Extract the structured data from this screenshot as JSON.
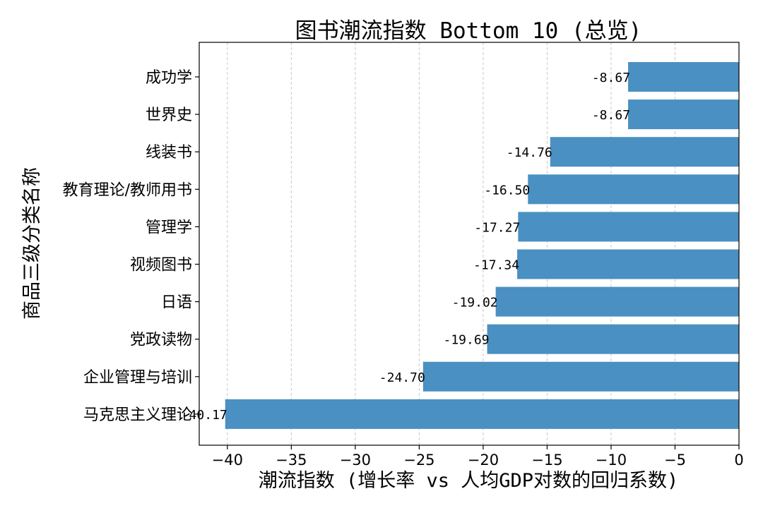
{
  "chart_data": {
    "type": "bar",
    "orientation": "horizontal",
    "title": "图书潮流指数 Bottom 10 (总览)",
    "xlabel": "潮流指数 (增长率 vs 人均GDP对数的回归系数)",
    "ylabel": "商品三级分类名称",
    "categories": [
      "成功学",
      "世界史",
      "线装书",
      "教育理论/教师用书",
      "管理学",
      "视频图书",
      "日语",
      "党政读物",
      "企业管理与培训",
      "马克思主义理论"
    ],
    "values": [
      -8.67,
      -8.67,
      -14.76,
      -16.5,
      -17.27,
      -17.34,
      -19.02,
      -19.69,
      -24.7,
      -40.17
    ],
    "data_labels": [
      "-8.67",
      "-8.67",
      "-14.76",
      "-16.50",
      "-17.27",
      "-17.34",
      "-19.02",
      "-19.69",
      "-24.70",
      "-40.17"
    ],
    "xlim": [
      -42.2,
      0
    ],
    "xticks": [
      -40,
      -35,
      -30,
      -25,
      -20,
      -15,
      -10,
      -5,
      0
    ],
    "xtick_labels": [
      "−40",
      "−35",
      "−30",
      "−25",
      "−20",
      "−15",
      "−10",
      "−5",
      "0"
    ],
    "grid": "x-dashed",
    "bar_color": "#4a90c2"
  }
}
